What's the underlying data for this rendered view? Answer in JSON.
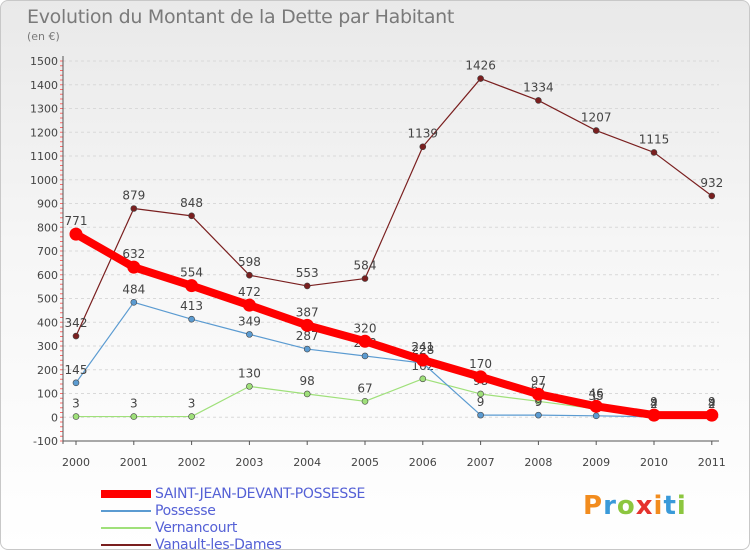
{
  "chart_data": {
    "type": "line",
    "title": "Evolution du Montant de la Dette par Habitant",
    "subtitle": "(en €)",
    "categories": [
      "2000",
      "2001",
      "2002",
      "2003",
      "2004",
      "2005",
      "2006",
      "2007",
      "2008",
      "2009",
      "2010",
      "2011"
    ],
    "ylim": [
      -100,
      1500
    ],
    "yticks": [
      -100,
      0,
      100,
      200,
      300,
      400,
      500,
      600,
      700,
      800,
      900,
      1000,
      1100,
      1200,
      1300,
      1400,
      1500
    ],
    "series": [
      {
        "name": "Vanault-les-Dames",
        "color": "#7a1f1f",
        "values": [
          342,
          879,
          848,
          598,
          553,
          584,
          1139,
          1426,
          1334,
          1207,
          1115,
          932
        ]
      },
      {
        "name": "Vernancourt",
        "color": "#9fe07a",
        "values": [
          3,
          3,
          3,
          130,
          98,
          67,
          162,
          98,
          67,
          35,
          4,
          4
        ]
      },
      {
        "name": "Possesse",
        "color": "#5b9bd1",
        "values": [
          145,
          484,
          413,
          349,
          287,
          258,
          228,
          9,
          9,
          6,
          2,
          2
        ]
      },
      {
        "name": "SAINT-JEAN-DEVANT-POSSESSE",
        "color": "#ff0000",
        "values": [
          771,
          632,
          554,
          472,
          387,
          320,
          241,
          170,
          97,
          46,
          9,
          9
        ]
      }
    ]
  },
  "legend": [
    {
      "name": "SAINT-JEAN-DEVANT-POSSESSE",
      "color": "#ff0000"
    },
    {
      "name": "Possesse",
      "color": "#5b9bd1"
    },
    {
      "name": "Vernancourt",
      "color": "#9fe07a"
    },
    {
      "name": "Vanault-les-Dames",
      "color": "#7a1f1f"
    }
  ],
  "logo": {
    "letters": [
      "P",
      "r",
      "o",
      "x",
      "i",
      "t",
      "i"
    ],
    "colors": [
      "#f28c1e",
      "#3a9ad9",
      "#8cc63f",
      "#e5322d",
      "#f28c1e",
      "#3a9ad9",
      "#8cc63f"
    ]
  }
}
